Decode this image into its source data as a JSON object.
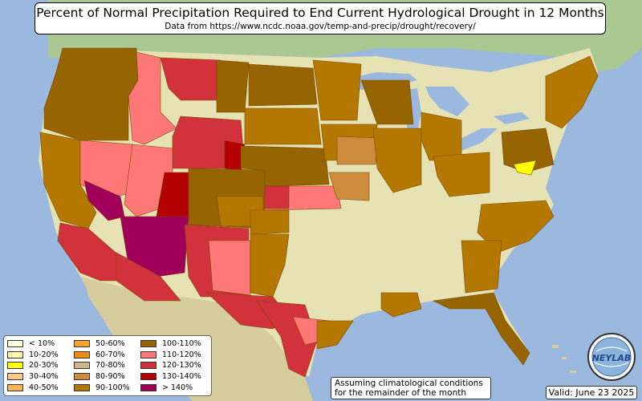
{
  "title": "Percent of Normal Precipitation Required to End Current Hydrological Drought in 12 Months",
  "subtitle": "Data from https://www.ncdc.noaa.gov/temp-and-precip/drought/recovery/",
  "note_line1": "Assuming climatological conditions",
  "note_line2": "for the remainder of the month",
  "valid": "Valid: June 23 2025",
  "logo_text": "NEYLAB",
  "legend": [
    {
      "label": "< 10%",
      "color": "#ffffe0"
    },
    {
      "label": "10-20%",
      "color": "#fffab0"
    },
    {
      "label": "20-30%",
      "color": "#ffff00"
    },
    {
      "label": "30-40%",
      "color": "#fcc88c"
    },
    {
      "label": "40-50%",
      "color": "#fbb45c"
    },
    {
      "label": "50-60%",
      "color": "#f5a42c"
    },
    {
      "label": "60-70%",
      "color": "#f08c0c"
    },
    {
      "label": "70-80%",
      "color": "#d2b48c"
    },
    {
      "label": "80-90%",
      "color": "#cd8c3c"
    },
    {
      "label": "90-100%",
      "color": "#b47800"
    },
    {
      "label": "100-110%",
      "color": "#966400"
    },
    {
      "label": "110-120%",
      "color": "#ff7878"
    },
    {
      "label": "120-130%",
      "color": "#d2323c"
    },
    {
      "label": "130-140%",
      "color": "#b40000"
    },
    {
      "label": "> 140%",
      "color": "#a0005a"
    }
  ],
  "colors": {
    "ocean": "#9bb8de",
    "land_us": "#e6e2b4",
    "land_canada": "#aac891",
    "land_mexico": "#d7cc9b",
    "lakes": "#9bb8de"
  }
}
